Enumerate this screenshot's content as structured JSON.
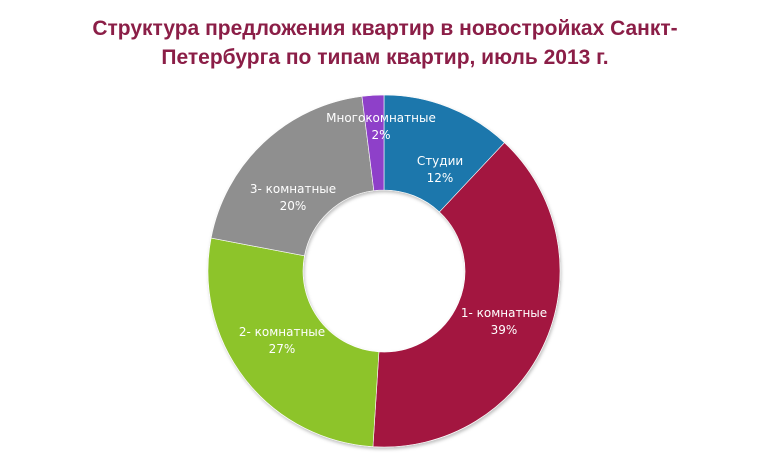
{
  "chart_data": {
    "type": "pie",
    "variant": "donut",
    "title": "Структура предложения квартир в новостройках Санкт-Петербурга по типам квартир, июль 2013 г.",
    "title_lines": [
      "Структура предложения квартир в новостройках Санкт-",
      "Петербурга по типам квартир, июль 2013 г."
    ],
    "categories": [
      "Студии",
      "1- комнатные",
      "2- комнатные",
      "3- комнатные",
      "Многокомнатные"
    ],
    "values": [
      12,
      39,
      27,
      20,
      2
    ],
    "unit": "%",
    "colors": [
      "#1B77AC",
      "#A3143F",
      "#8DC42B",
      "#8F8F8F",
      "#8E40C9"
    ],
    "data_labels": [
      {
        "name": "Студии",
        "value": "12%"
      },
      {
        "name": "1- комнатные",
        "value": "39%"
      },
      {
        "name": "2- комнатные",
        "value": "27%"
      },
      {
        "name": "3- комнатные",
        "value": "20%"
      },
      {
        "name": "Многокомнатные",
        "value": "2%"
      }
    ],
    "legend": "none",
    "title_color": "#8B1E47"
  }
}
